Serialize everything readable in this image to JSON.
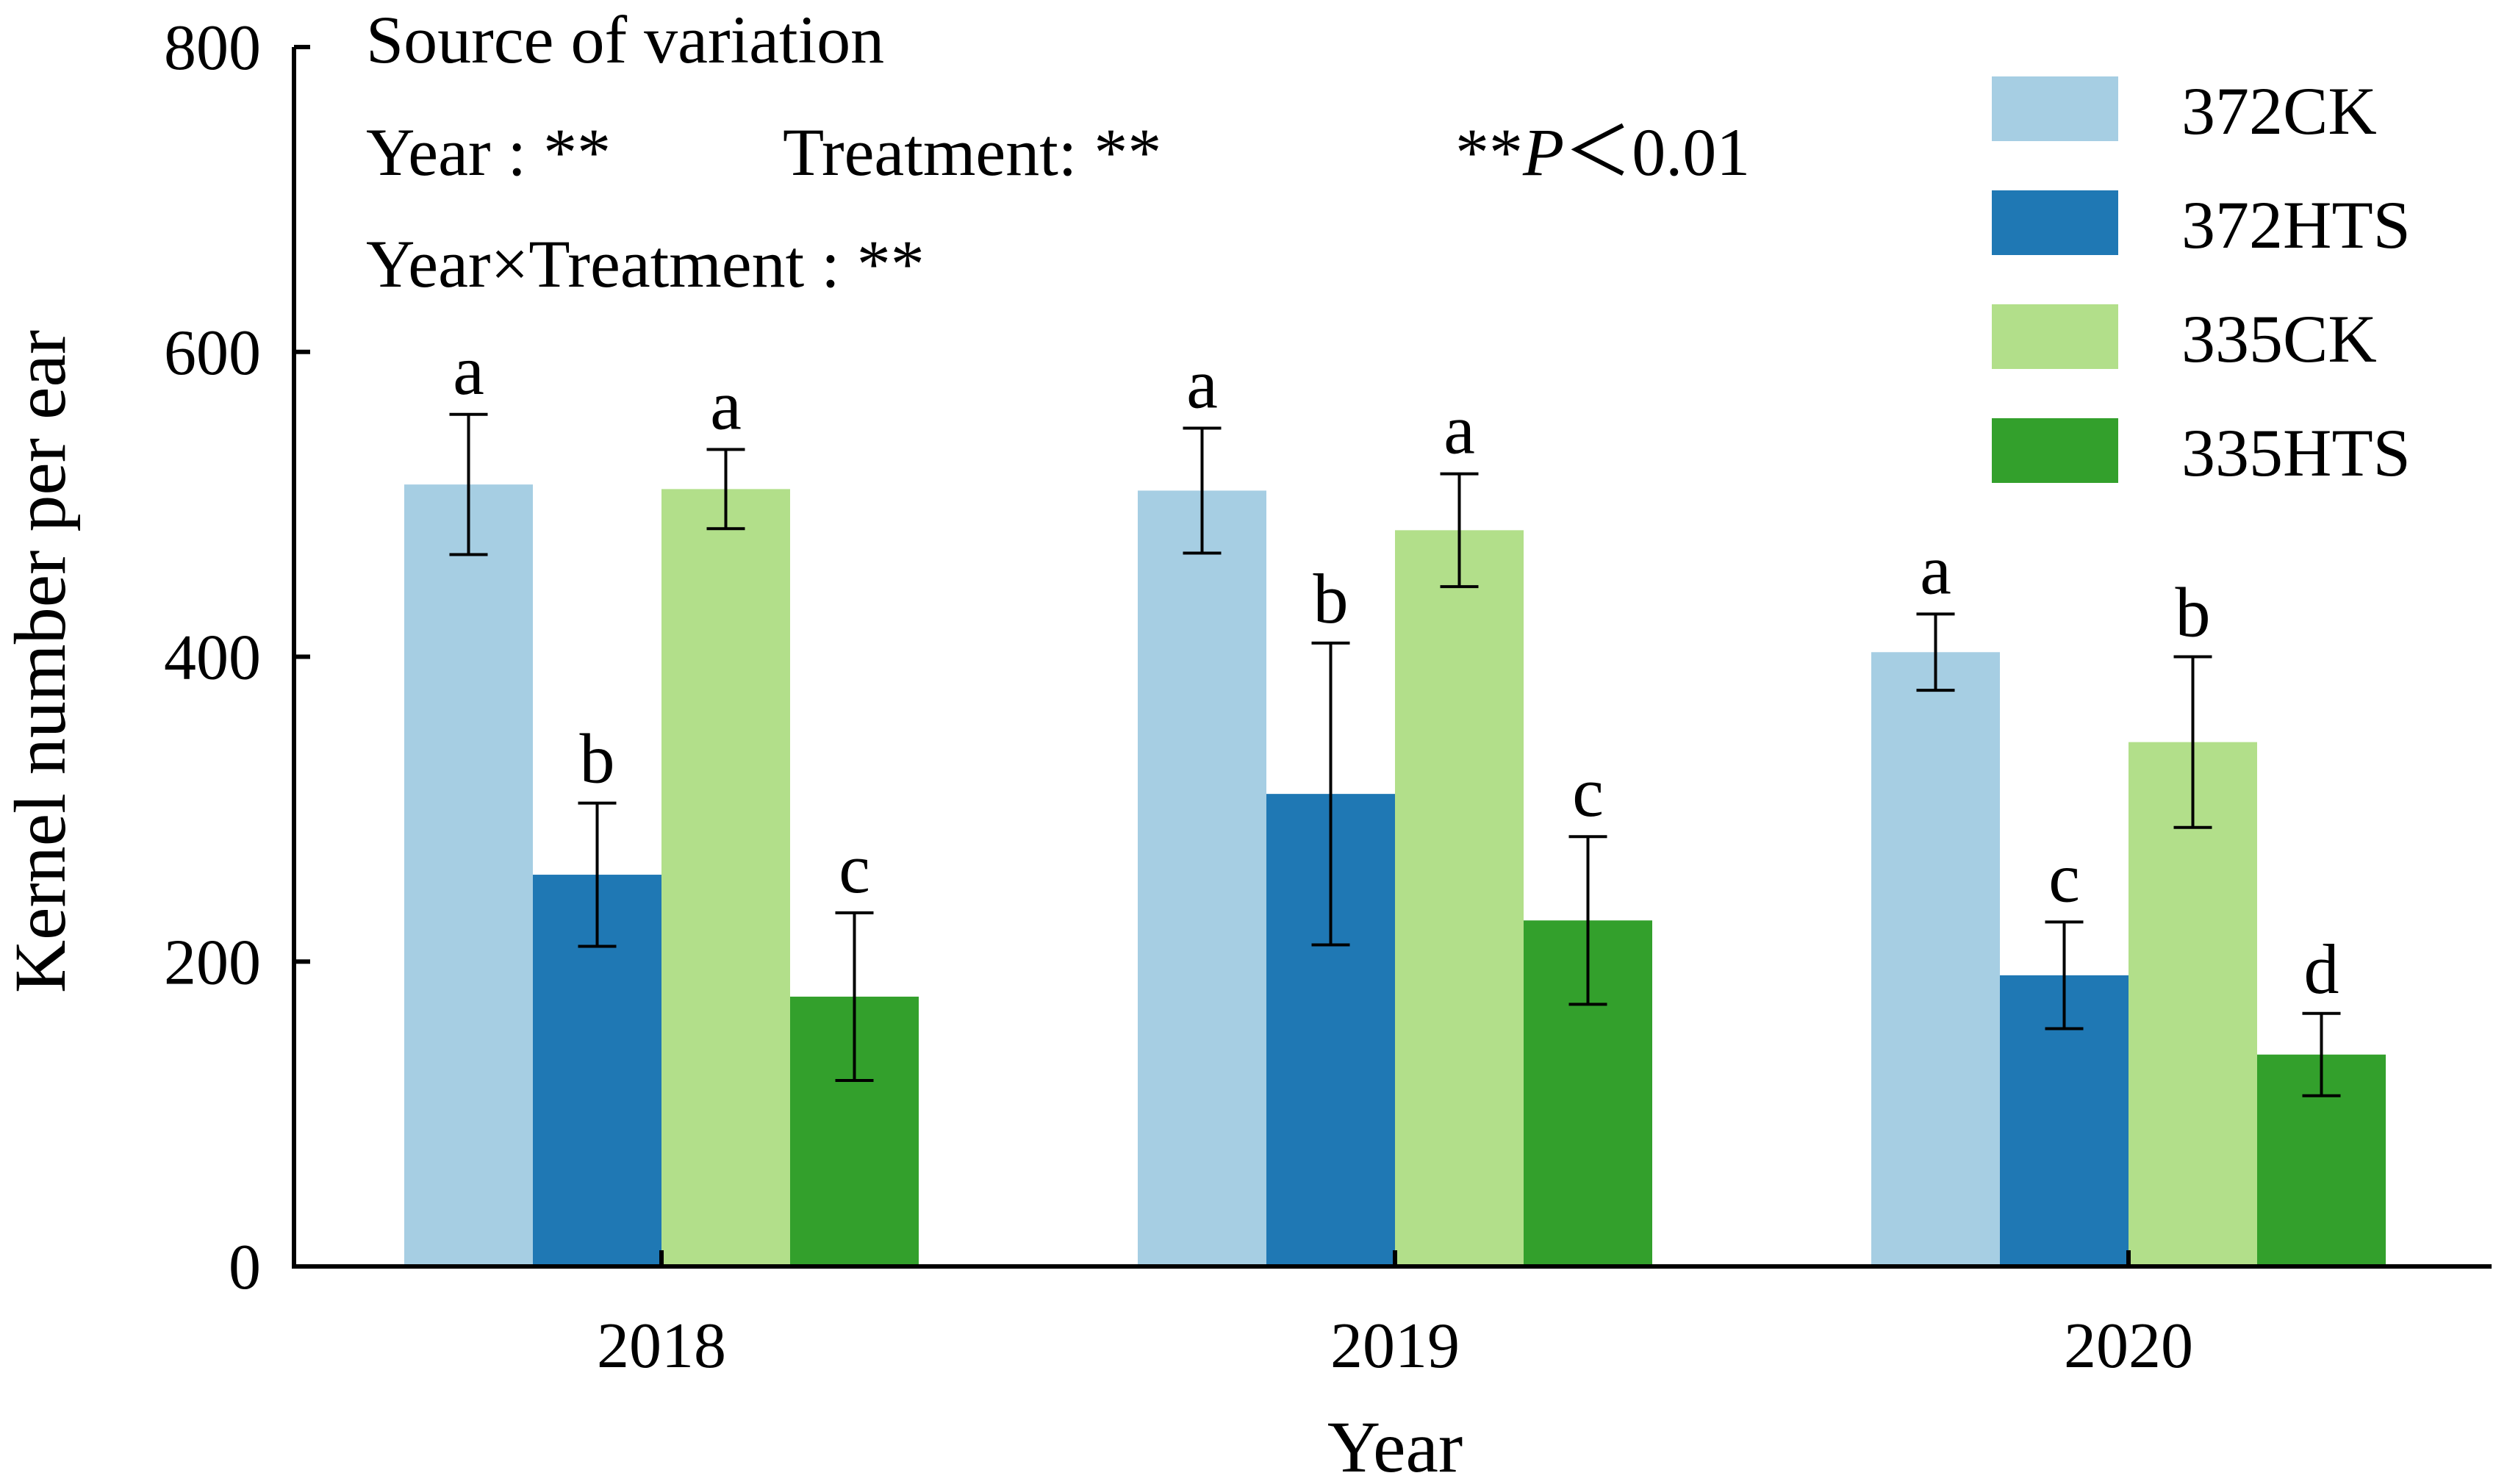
{
  "chart_data": {
    "type": "bar",
    "title": "",
    "xlabel": "Year",
    "ylabel": "Kernel number per ear",
    "ylim": [
      0,
      800
    ],
    "yticks": [
      "0",
      "200",
      "400",
      "600",
      "800"
    ],
    "categories": [
      "2018",
      "2019",
      "2020"
    ],
    "series": [
      {
        "name": "372CK",
        "color": "#a6cee3",
        "values": [
          513,
          509,
          403
        ],
        "errors": [
          46,
          41,
          25
        ],
        "letters": [
          "a",
          "a",
          "a"
        ]
      },
      {
        "name": "372HTS",
        "color": "#1f78b4",
        "values": [
          257,
          310,
          191
        ],
        "errors": [
          47,
          99,
          35
        ],
        "letters": [
          "b",
          "b",
          "c"
        ]
      },
      {
        "name": "335CK",
        "color": "#b2df8a",
        "values": [
          510,
          483,
          344
        ],
        "errors": [
          26,
          37,
          56
        ],
        "letters": [
          "a",
          "a",
          "b"
        ]
      },
      {
        "name": "335HTS",
        "color": "#33a02c",
        "values": [
          177,
          227,
          139
        ],
        "errors": [
          55,
          55,
          27
        ],
        "letters": [
          "c",
          "c",
          "d"
        ]
      }
    ],
    "legend_position": "top-right",
    "annotations": {
      "heading": "Source of variation",
      "year_label": "Year : **",
      "treatment_label": "Treatment:  **",
      "p_stars": "**",
      "p_symbol": "P",
      "p_rest": "＜0.01",
      "interaction_label": "Year×Treatment : **"
    }
  }
}
